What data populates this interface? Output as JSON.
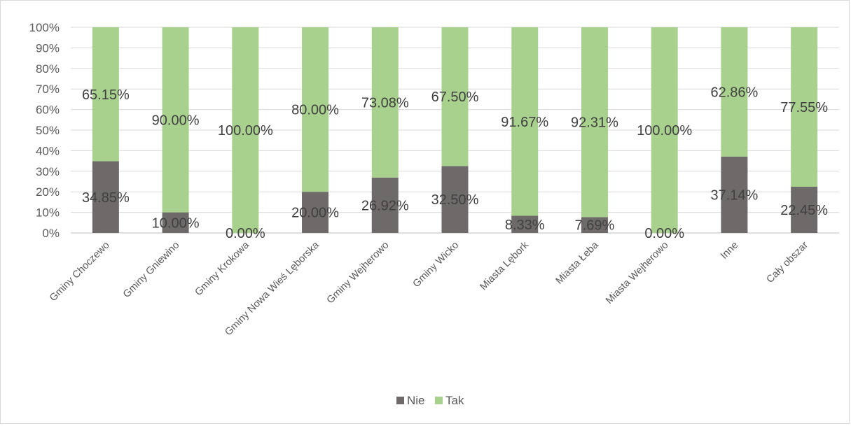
{
  "chart_data": {
    "type": "bar",
    "stacked": true,
    "percent": true,
    "categories": [
      "Gminy Choczewo",
      "Gminy Gniewino",
      "Gminy Krokowa",
      "Gminy Nowa Wieś Lęborska",
      "Gminy Wejherowo",
      "Gminy Wicko",
      "Miasta Lębork",
      "Miasta Łeba",
      "Miasta Wejherowo",
      "Inne",
      "Cały obszar"
    ],
    "series": [
      {
        "name": "Nie",
        "color": "#6e6a6a",
        "values": [
          34.85,
          10.0,
          0.0,
          20.0,
          26.92,
          32.5,
          8.33,
          7.69,
          0.0,
          37.14,
          22.45
        ],
        "labels": [
          "34.85%",
          "10.00%",
          "0.00%",
          "20.00%",
          "26.92%",
          "32.50%",
          "8.33%",
          "7.69%",
          "0.00%",
          "37.14%",
          "22.45%"
        ]
      },
      {
        "name": "Tak",
        "color": "#a9d18e",
        "values": [
          65.15,
          90.0,
          100.0,
          80.0,
          73.08,
          67.5,
          91.67,
          92.31,
          100.0,
          62.86,
          77.55
        ],
        "labels": [
          "65.15%",
          "90.00%",
          "100.00%",
          "80.00%",
          "73.08%",
          "67.50%",
          "91.67%",
          "92.31%",
          "100.00%",
          "62.86%",
          "77.55%"
        ]
      }
    ],
    "y_ticks": [
      "0%",
      "10%",
      "20%",
      "30%",
      "40%",
      "50%",
      "60%",
      "70%",
      "80%",
      "90%",
      "100%"
    ],
    "ylim": [
      0,
      100
    ],
    "grid": true,
    "legend_position": "bottom",
    "title": "",
    "xlabel": "",
    "ylabel": ""
  }
}
